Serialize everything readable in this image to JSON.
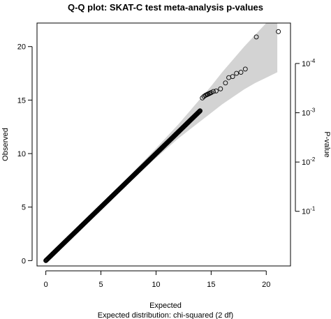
{
  "chart_data": {
    "type": "scatter",
    "title": "Q-Q plot: SKAT-C test meta-analysis p-values",
    "xlabel": "Expected",
    "xsublabel": "Expected distribution: chi-squared (2 df)",
    "ylabel": "Observed",
    "right_axis_label": "P-value",
    "xlim": [
      -0.8,
      22.2
    ],
    "ylim": [
      -0.5,
      22.2
    ],
    "x_ticks": [
      0,
      5,
      10,
      15,
      20
    ],
    "y_ticks": [
      0,
      5,
      10,
      15,
      20
    ],
    "right_ticks": [
      {
        "base": "10",
        "exp": "-1"
      },
      {
        "base": "10",
        "exp": "-2"
      },
      {
        "base": "10",
        "exp": "-3"
      },
      {
        "base": "10",
        "exp": "-4"
      }
    ],
    "grid": false,
    "dense_range": [
      0,
      14.0
    ],
    "confidence_band": {
      "x": [
        0,
        2,
        4,
        6,
        8,
        10,
        11,
        12,
        13,
        14,
        15,
        16,
        17,
        18,
        19,
        20,
        21
      ],
      "lower": [
        0,
        1.95,
        3.9,
        5.8,
        7.7,
        9.6,
        10.5,
        11.4,
        12.2,
        13.0,
        13.8,
        14.6,
        15.3,
        16.0,
        16.6,
        17.1,
        17.6
      ],
      "upper": [
        0.15,
        2.1,
        4.15,
        6.25,
        8.35,
        10.5,
        11.6,
        12.7,
        13.9,
        15.1,
        16.3,
        17.6,
        18.8,
        20.0,
        21.1,
        22.2,
        22.2
      ]
    },
    "tail_points": [
      {
        "x": 14.2,
        "y": 15.2
      },
      {
        "x": 14.35,
        "y": 15.35
      },
      {
        "x": 14.5,
        "y": 15.45
      },
      {
        "x": 14.6,
        "y": 15.5
      },
      {
        "x": 14.7,
        "y": 15.55
      },
      {
        "x": 14.8,
        "y": 15.6
      },
      {
        "x": 14.9,
        "y": 15.65
      },
      {
        "x": 15.0,
        "y": 15.7
      },
      {
        "x": 15.2,
        "y": 15.8
      },
      {
        "x": 15.45,
        "y": 15.85
      },
      {
        "x": 15.85,
        "y": 16.05
      },
      {
        "x": 16.3,
        "y": 16.6
      },
      {
        "x": 16.6,
        "y": 17.1
      },
      {
        "x": 16.95,
        "y": 17.2
      },
      {
        "x": 17.3,
        "y": 17.5
      },
      {
        "x": 17.7,
        "y": 17.6
      },
      {
        "x": 18.1,
        "y": 17.9
      },
      {
        "x": 19.1,
        "y": 20.9
      },
      {
        "x": 21.1,
        "y": 21.4
      }
    ]
  }
}
